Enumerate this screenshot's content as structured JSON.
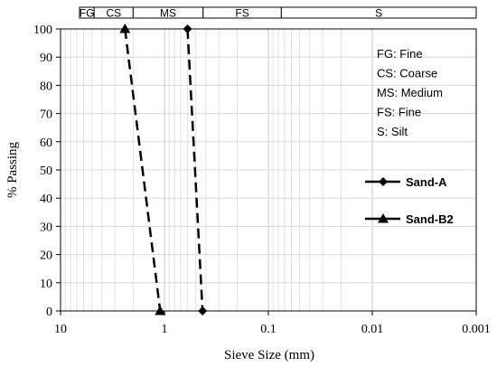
{
  "chart_data": {
    "type": "line",
    "xlabel": "Sieve Size (mm)",
    "ylabel": "% Passing",
    "x_scale": "log",
    "x_reversed": true,
    "xlim": [
      10,
      0.001
    ],
    "ylim": [
      0,
      100
    ],
    "x_ticks": [
      {
        "value": 10,
        "label": "10"
      },
      {
        "value": 1,
        "label": "1"
      },
      {
        "value": 0.1,
        "label": "0.1"
      },
      {
        "value": 0.01,
        "label": "0.01"
      },
      {
        "value": 0.001,
        "label": "0.001"
      }
    ],
    "y_ticks": [
      0,
      10,
      20,
      30,
      40,
      50,
      60,
      70,
      80,
      90,
      100
    ],
    "grid": true,
    "series": [
      {
        "name": "Sand-A",
        "marker": "diamond",
        "x": [
          0.6,
          0.43
        ],
        "y": [
          100,
          0
        ]
      },
      {
        "name": "Sand-B2",
        "marker": "triangle",
        "x": [
          2.4,
          1.1
        ],
        "y": [
          100,
          0
        ]
      }
    ],
    "classification_bands": [
      {
        "label": "FG",
        "from": 10,
        "to": 4.75
      },
      {
        "label": "CS",
        "from": 4.75,
        "to": 2.0
      },
      {
        "label": "MS",
        "from": 2.0,
        "to": 0.425
      },
      {
        "label": "FS",
        "from": 0.425,
        "to": 0.075
      },
      {
        "label": "S",
        "from": 0.075,
        "to": 0.001
      }
    ],
    "annotations": [
      "FG: Fine",
      "CS: Coarse",
      "MS: Medium",
      "FS: Fine",
      "S: Silt"
    ],
    "legend_position": "right"
  }
}
